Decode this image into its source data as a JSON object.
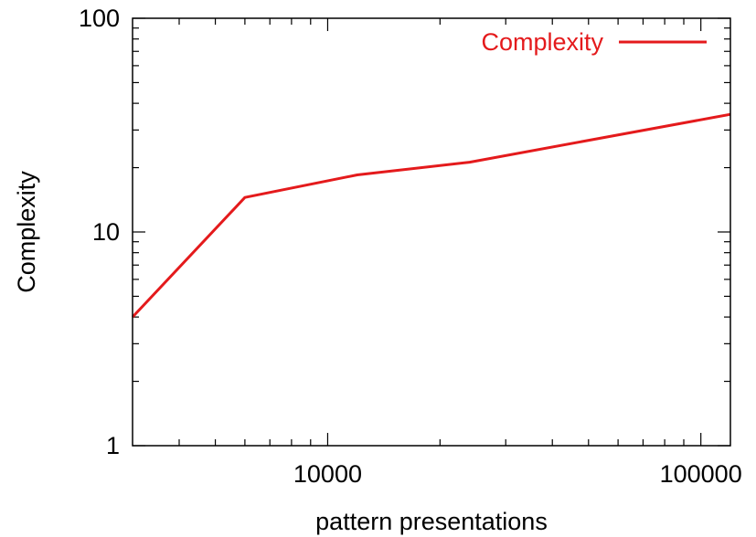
{
  "chart_data": {
    "type": "line",
    "title": "",
    "xlabel": "pattern presentations",
    "ylabel": "Complexity",
    "xscale": "log",
    "yscale": "log",
    "xlim": [
      3000,
      120000
    ],
    "ylim": [
      1,
      100
    ],
    "xticks": [
      {
        "value": 10000,
        "label": "10000"
      },
      {
        "value": 100000,
        "label": "100000"
      }
    ],
    "yticks": [
      {
        "value": 1,
        "label": "1"
      },
      {
        "value": 10,
        "label": "10"
      },
      {
        "value": 100,
        "label": "100"
      }
    ],
    "grid": false,
    "legend": {
      "position": "top-right"
    },
    "series": [
      {
        "name": "Complexity",
        "color": "#e41a1c",
        "x": [
          3000,
          6000,
          12000,
          24000,
          48000,
          120000
        ],
        "y": [
          4.0,
          14.5,
          18.5,
          21.2,
          26.5,
          35.5
        ]
      }
    ]
  }
}
